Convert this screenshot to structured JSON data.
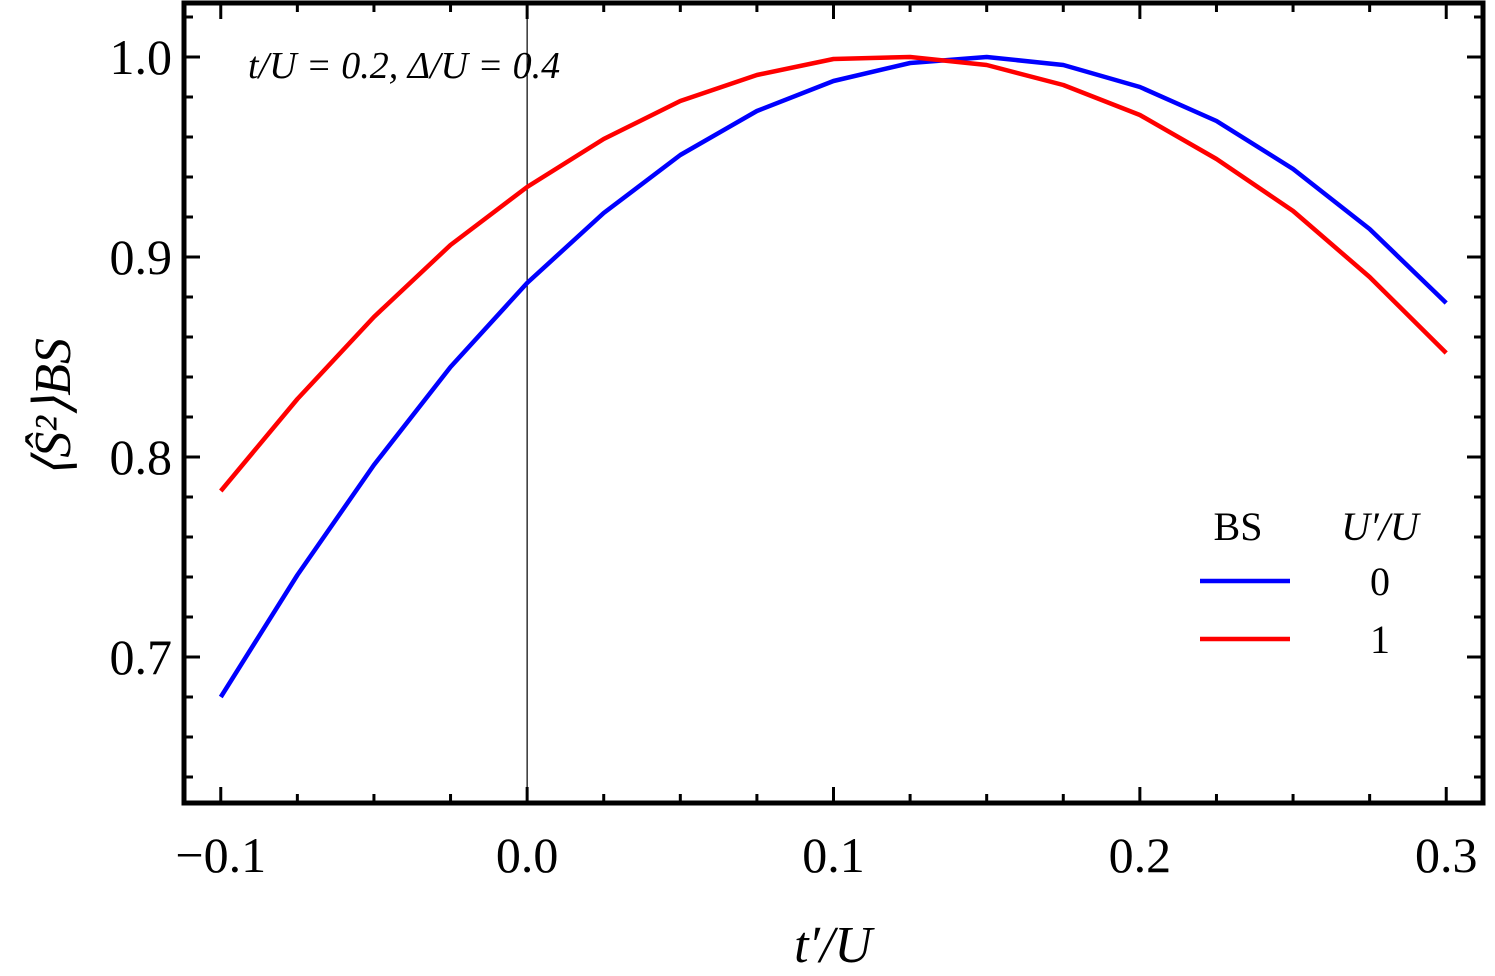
{
  "chart_data": {
    "type": "line",
    "x": [
      -0.1,
      -0.075,
      -0.05,
      -0.025,
      0.0,
      0.025,
      0.05,
      0.075,
      0.1,
      0.125,
      0.15,
      0.175,
      0.2,
      0.225,
      0.25,
      0.275,
      0.3
    ],
    "series": [
      {
        "name": "0",
        "color": "#0000ff",
        "values": [
          0.68,
          0.741,
          0.796,
          0.845,
          0.887,
          0.922,
          0.951,
          0.973,
          0.988,
          0.997,
          1.0,
          0.996,
          0.985,
          0.968,
          0.944,
          0.914,
          0.877
        ]
      },
      {
        "name": "1",
        "color": "#ff0000",
        "values": [
          0.783,
          0.829,
          0.87,
          0.906,
          0.935,
          0.959,
          0.978,
          0.991,
          0.999,
          1.0,
          0.996,
          0.986,
          0.971,
          0.949,
          0.923,
          0.89,
          0.852
        ]
      }
    ],
    "xlim": [
      -0.112,
      0.312
    ],
    "ylim": [
      0.627,
      1.027
    ],
    "xticks": [
      -0.1,
      0.0,
      0.1,
      0.2,
      0.3
    ],
    "xtick_labels": [
      "−0.1",
      "0.0",
      "0.1",
      "0.2",
      "0.3"
    ],
    "yticks": [
      0.7,
      0.8,
      0.9,
      1.0
    ],
    "ytick_labels": [
      "0.7",
      "0.8",
      "0.9",
      "1.0"
    ],
    "xlabel": "t′/U",
    "ylabel": "⟨Ŝ²⟩BS",
    "annotation": "t/U = 0.2, Δ/U = 0.4",
    "legend": {
      "title_left": "BS",
      "title_right": "U′/U",
      "placement": "right"
    },
    "grid": false
  }
}
